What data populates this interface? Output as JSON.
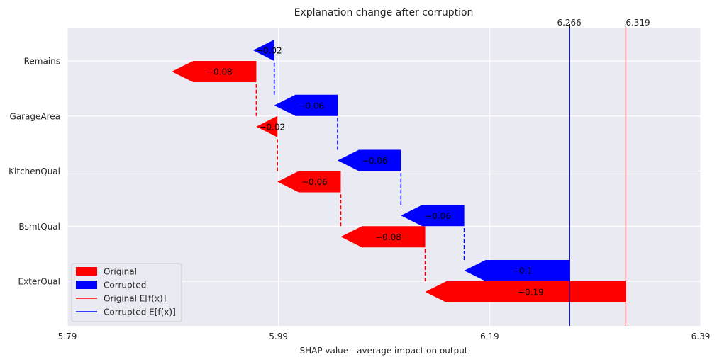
{
  "chart_data": {
    "type": "waterfall",
    "title": "Explanation change after corruption",
    "xlabel": "SHAP value - average impact on output",
    "ylabel": "",
    "xlim": [
      5.79,
      6.39
    ],
    "xticks": [
      5.79,
      5.99,
      6.19,
      6.39
    ],
    "x_tick_labels": [
      "5.79",
      "5.99",
      "6.19",
      "6.39"
    ],
    "features": [
      "ExterQual",
      "BsmtQual",
      "KitchenQual",
      "GarageArea",
      "Remains"
    ],
    "grid": true,
    "legend_position": "lower-left",
    "series": [
      {
        "name": "Original",
        "color": "#ff0000",
        "base_value": 6.319,
        "base_label": "6.319",
        "contributions": [
          {
            "feature": "ExterQual",
            "value": -0.19,
            "label": "−0.19"
          },
          {
            "feature": "BsmtQual",
            "value": -0.08,
            "label": "−0.08"
          },
          {
            "feature": "KitchenQual",
            "value": -0.06,
            "label": "−0.06"
          },
          {
            "feature": "GarageArea",
            "value": -0.02,
            "label": "−0.02"
          },
          {
            "feature": "Remains",
            "value": -0.08,
            "label": "−0.08"
          }
        ]
      },
      {
        "name": "Corrupted",
        "color": "#0000ff",
        "base_value": 6.266,
        "base_label": "6.266",
        "contributions": [
          {
            "feature": "ExterQual",
            "value": -0.1,
            "label": "−0.1"
          },
          {
            "feature": "BsmtQual",
            "value": -0.06,
            "label": "−0.06"
          },
          {
            "feature": "KitchenQual",
            "value": -0.06,
            "label": "−0.06"
          },
          {
            "feature": "GarageArea",
            "value": -0.06,
            "label": "−0.06"
          },
          {
            "feature": "Remains",
            "value": -0.02,
            "label": "−0.02"
          }
        ]
      }
    ],
    "legend": [
      "Original",
      "Corrupted",
      "Original E[f(x)]",
      "Corrupted E[f(x)]"
    ]
  }
}
